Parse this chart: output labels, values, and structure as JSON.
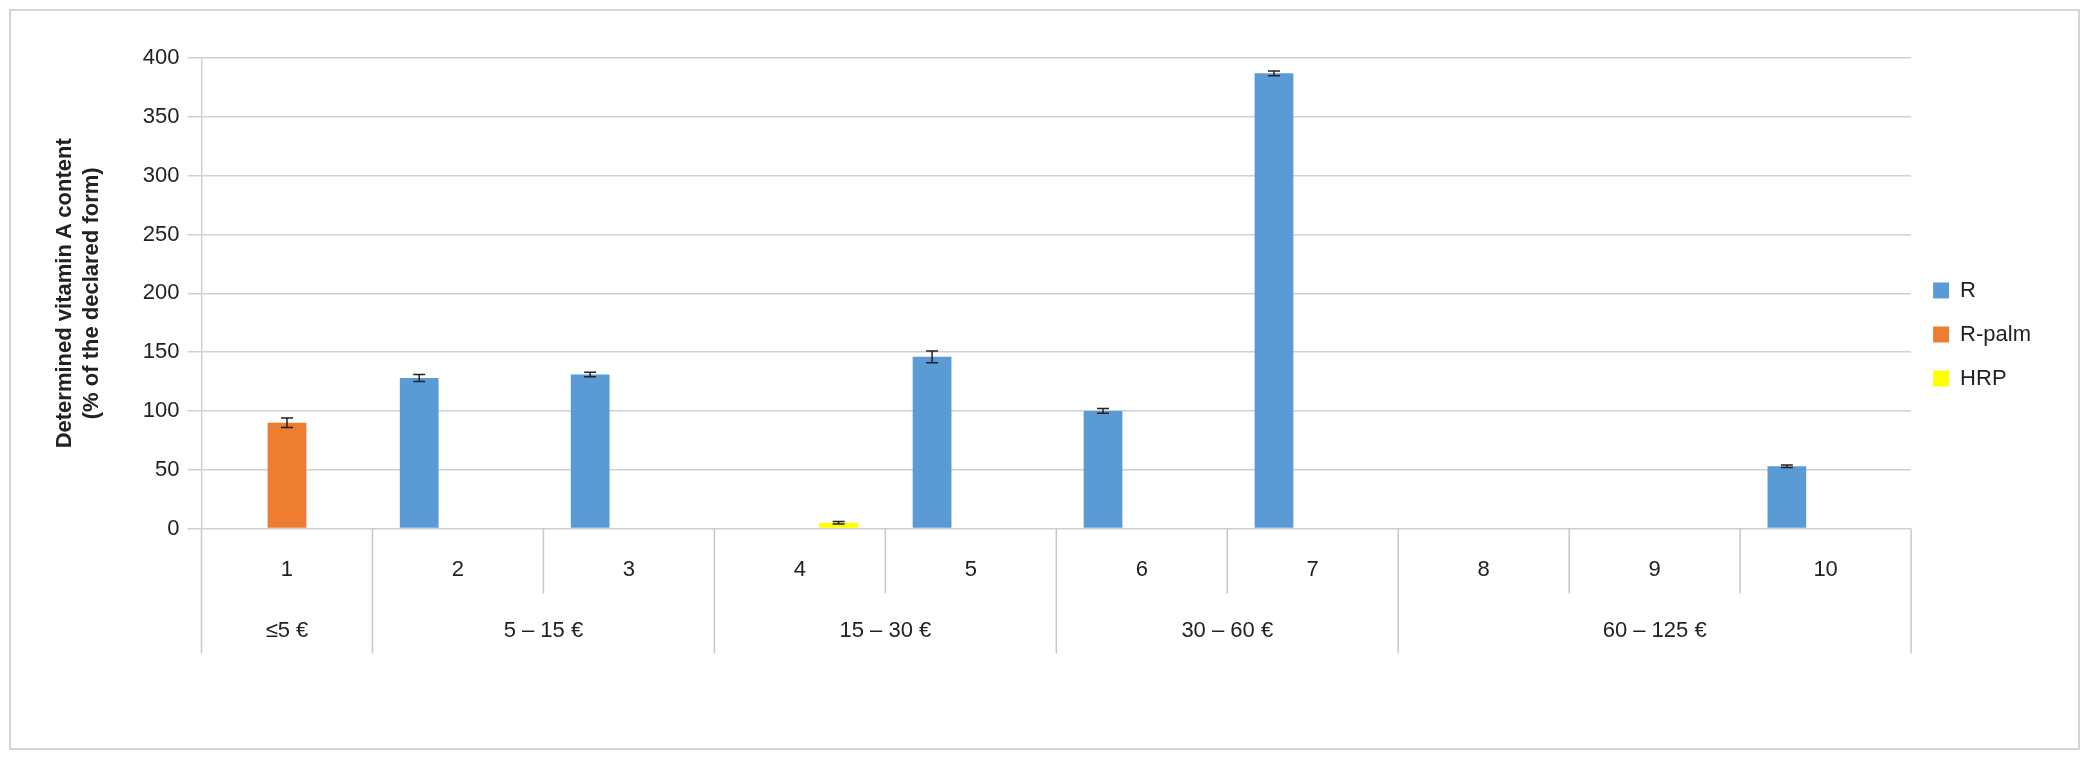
{
  "chart_data": {
    "type": "bar",
    "ylabel": "Determined vitamin A content\n(% of the declared form)",
    "categories": [
      "1",
      "2",
      "3",
      "4",
      "5",
      "6",
      "7",
      "8",
      "9",
      "10"
    ],
    "series": [
      {
        "name": "R",
        "color": "#5b9bd5",
        "values": [
          null,
          128,
          131,
          null,
          146,
          100,
          387,
          null,
          null,
          53
        ],
        "errors": [
          null,
          3,
          2,
          null,
          5,
          2,
          2,
          null,
          null,
          1
        ]
      },
      {
        "name": "R-palm",
        "color": "#ed7d31",
        "values": [
          90,
          null,
          null,
          null,
          null,
          null,
          null,
          null,
          null,
          null
        ],
        "errors": [
          4,
          null,
          null,
          null,
          null,
          null,
          null,
          null,
          null,
          null
        ]
      },
      {
        "name": "HRP",
        "color": "#ffff00",
        "values": [
          null,
          null,
          null,
          5,
          null,
          null,
          null,
          null,
          null,
          null
        ],
        "errors": [
          null,
          null,
          null,
          1,
          null,
          null,
          null,
          null,
          null,
          null
        ]
      }
    ],
    "annotations": [
      "≤5 €",
      "5 – 15 €",
      "15 – 30 €",
      "30 – 60 €",
      "60 – 125 €"
    ],
    "ylim": [
      0,
      400
    ],
    "yticks": [
      0,
      50,
      100,
      150,
      200,
      250,
      300,
      350,
      400
    ],
    "grid": "y",
    "legend": "right"
  }
}
